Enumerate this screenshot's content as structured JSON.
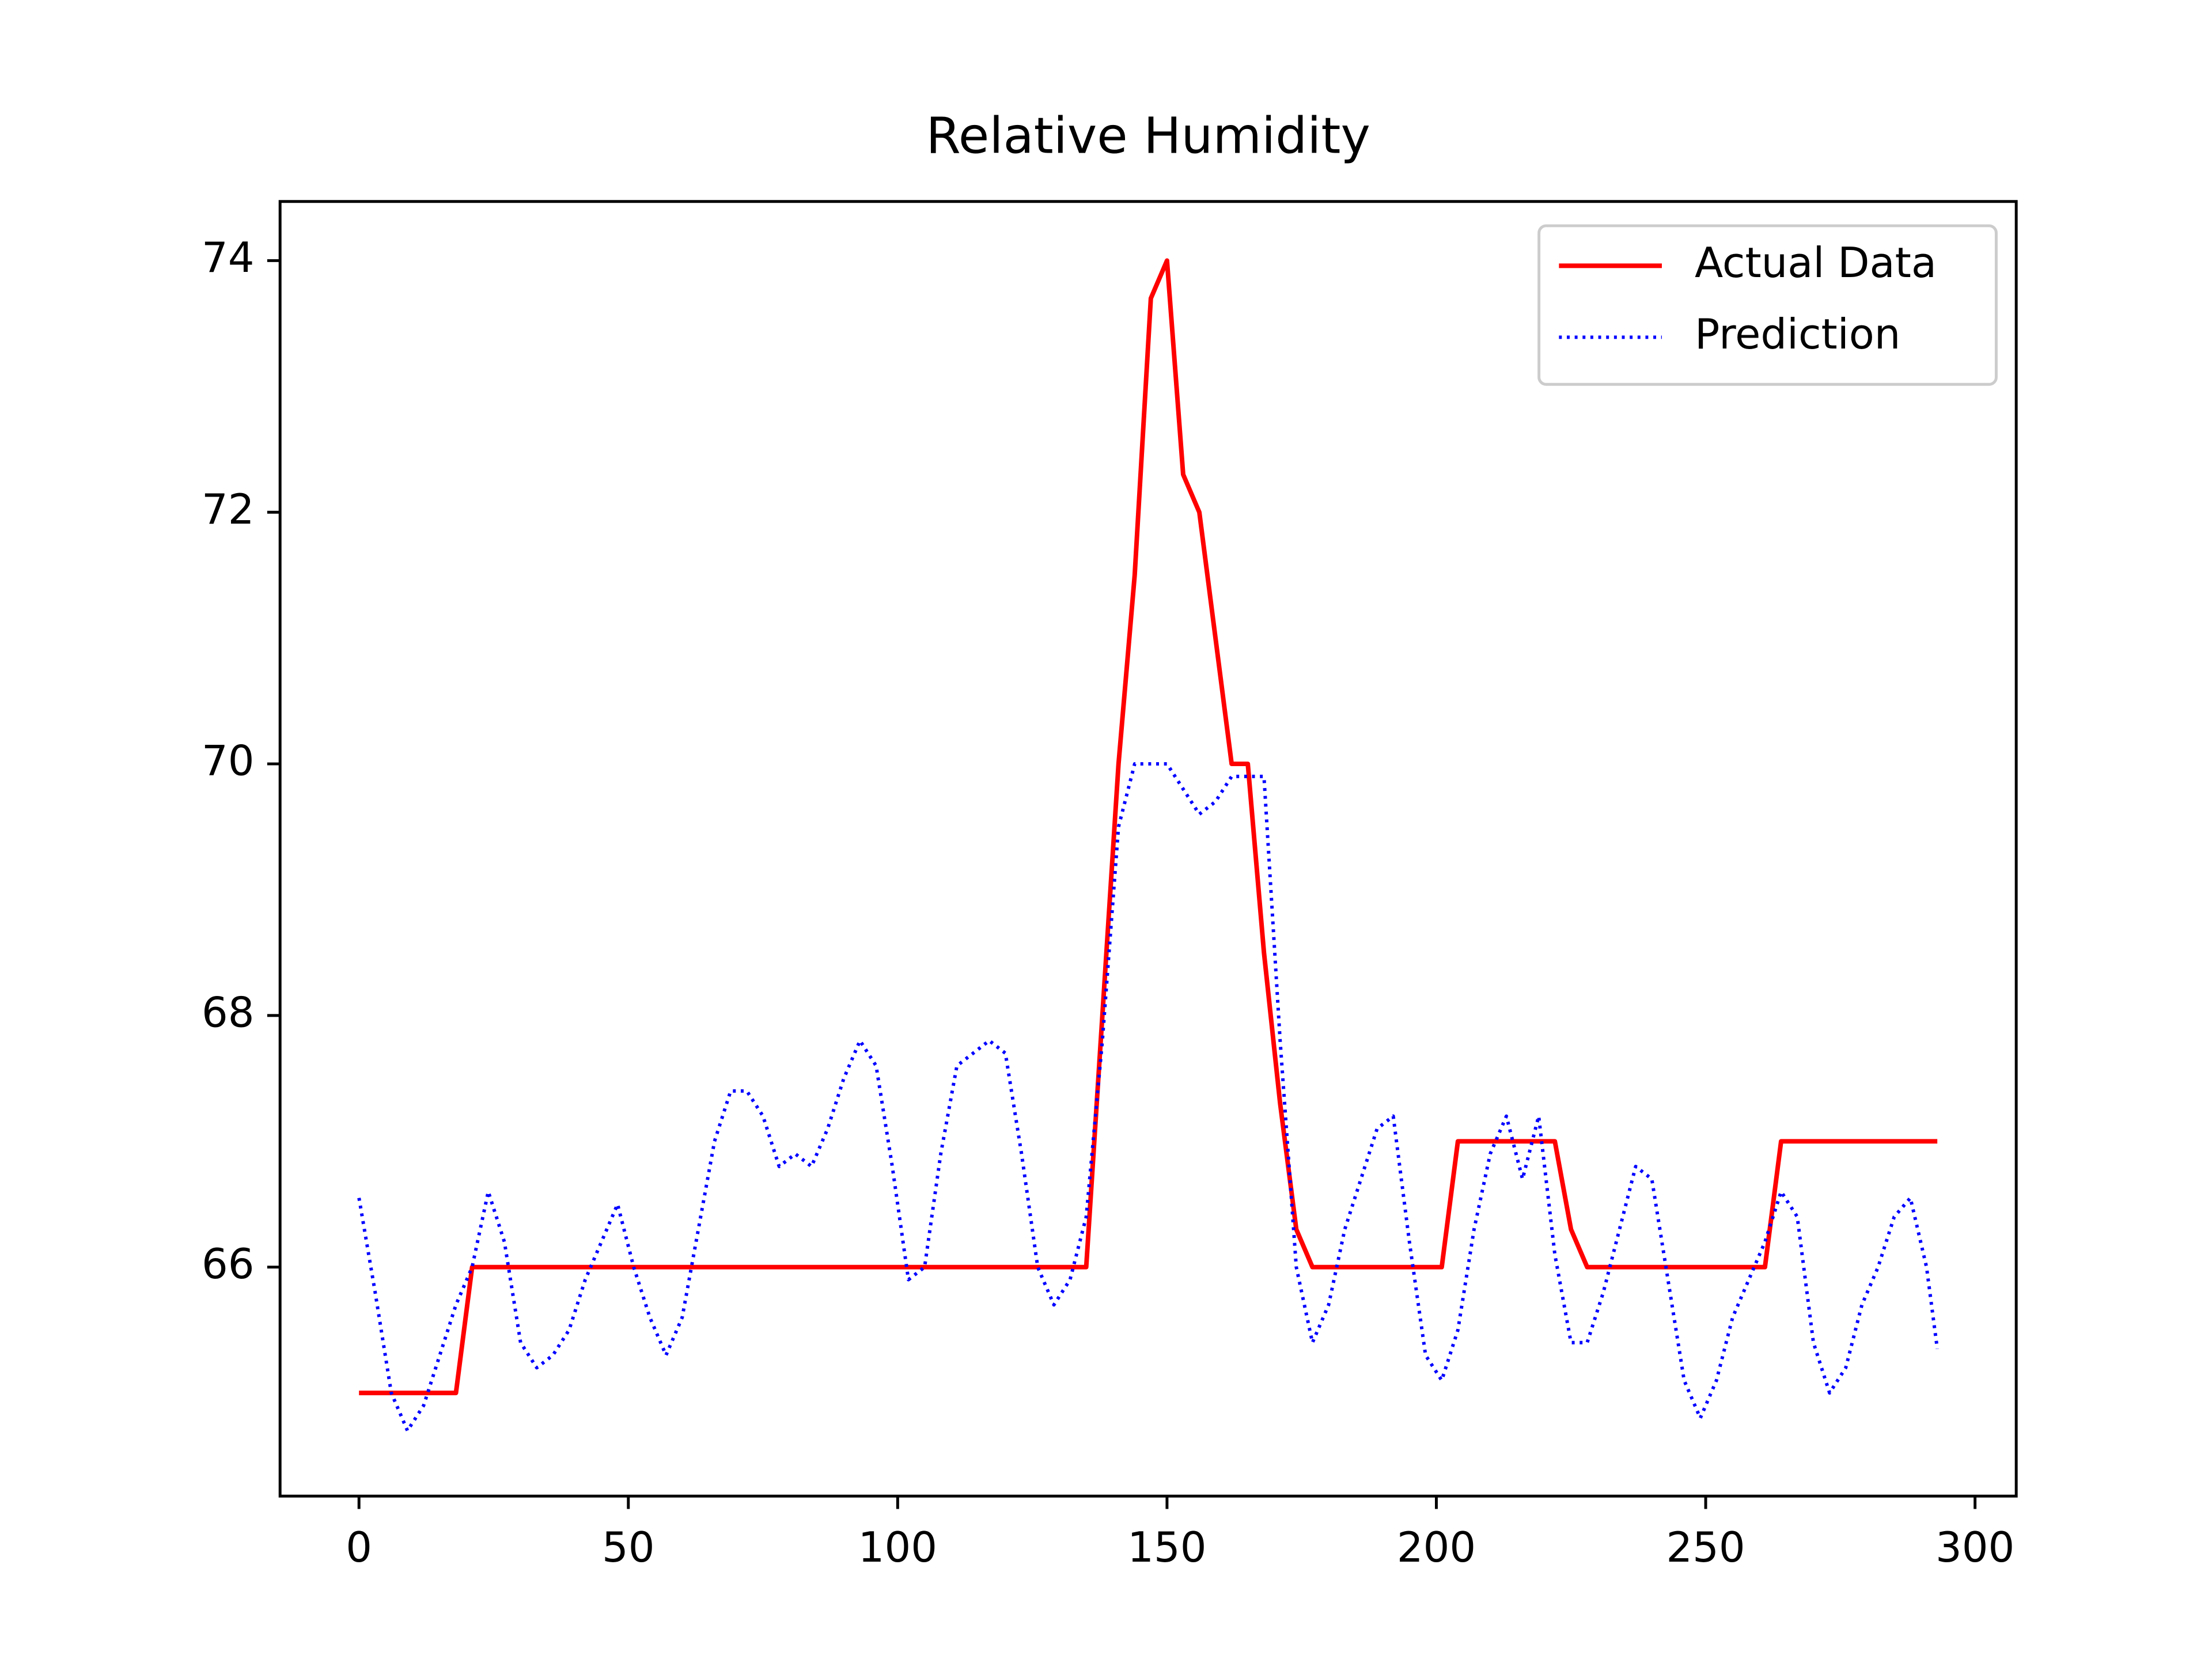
{
  "chart_data": {
    "type": "line",
    "title": "Relative Humidity",
    "x": [
      0,
      3,
      6,
      9,
      12,
      15,
      18,
      21,
      24,
      27,
      30,
      33,
      36,
      39,
      42,
      45,
      48,
      51,
      54,
      57,
      60,
      63,
      66,
      69,
      72,
      75,
      78,
      81,
      84,
      87,
      90,
      93,
      96,
      99,
      102,
      105,
      108,
      111,
      114,
      117,
      120,
      123,
      126,
      129,
      132,
      135,
      138,
      141,
      144,
      147,
      150,
      153,
      156,
      159,
      162,
      165,
      168,
      171,
      174,
      177,
      180,
      183,
      186,
      189,
      192,
      195,
      198,
      201,
      204,
      207,
      210,
      213,
      216,
      219,
      222,
      225,
      228,
      231,
      234,
      237,
      240,
      243,
      246,
      249,
      252,
      255,
      258,
      261,
      264,
      267,
      270,
      273,
      276,
      279,
      282,
      285,
      288,
      291,
      293
    ],
    "series": [
      {
        "name": "Actual Data",
        "color": "#ff0000",
        "linestyle": "solid",
        "values": [
          65,
          65,
          65,
          65,
          65,
          65,
          65,
          66,
          66,
          66,
          66,
          66,
          66,
          66,
          66,
          66,
          66,
          66,
          66,
          66,
          66,
          66,
          66,
          66,
          66,
          66,
          66,
          66,
          66,
          66,
          66,
          66,
          66,
          66,
          66,
          66,
          66,
          66,
          66,
          66,
          66,
          66,
          66,
          66,
          66,
          66,
          68,
          70,
          71.5,
          73.7,
          74,
          72.3,
          72,
          71,
          70,
          70,
          68.5,
          67.3,
          66.3,
          66,
          66,
          66,
          66,
          66,
          66,
          66,
          66,
          66,
          67,
          67,
          67,
          67,
          67,
          67,
          67,
          66.3,
          66,
          66,
          66,
          66,
          66,
          66,
          66,
          66,
          66,
          66,
          66,
          66,
          67,
          67,
          67,
          67,
          67,
          67,
          67,
          67,
          67,
          67,
          67
        ]
      },
      {
        "name": "Prediction",
        "color": "#0000ff",
        "linestyle": "dotted",
        "values": [
          66.55,
          65.8,
          65.0,
          64.7,
          64.9,
          65.3,
          65.7,
          66.0,
          66.6,
          66.2,
          65.4,
          65.2,
          65.3,
          65.5,
          65.9,
          66.2,
          66.5,
          66.0,
          65.6,
          65.3,
          65.6,
          66.3,
          67.0,
          67.4,
          67.4,
          67.2,
          66.8,
          66.9,
          66.8,
          67.1,
          67.5,
          67.8,
          67.6,
          66.8,
          65.9,
          66.0,
          66.9,
          67.6,
          67.7,
          67.8,
          67.7,
          66.9,
          66.0,
          65.7,
          65.9,
          66.4,
          67.8,
          69.5,
          70.0,
          70.0,
          70.0,
          69.8,
          69.6,
          69.7,
          69.9,
          69.9,
          69.9,
          67.8,
          66.0,
          65.4,
          65.7,
          66.3,
          66.7,
          67.1,
          67.2,
          66.2,
          65.3,
          65.1,
          65.5,
          66.3,
          66.9,
          67.2,
          66.7,
          67.2,
          66.1,
          65.4,
          65.4,
          65.8,
          66.3,
          66.8,
          66.7,
          65.9,
          65.1,
          64.8,
          65.1,
          65.6,
          65.9,
          66.2,
          66.6,
          66.4,
          65.4,
          65.0,
          65.2,
          65.7,
          66.0,
          66.4,
          66.55,
          66.0,
          65.35
        ]
      }
    ],
    "xlim": [
      -14.65,
      307.65
    ],
    "xticks": [
      0,
      50,
      100,
      150,
      200,
      250,
      300
    ],
    "ylim": [
      64.18,
      74.47
    ],
    "yticks": [
      66,
      68,
      70,
      72,
      74
    ],
    "grid": false,
    "legend": "upper right"
  }
}
